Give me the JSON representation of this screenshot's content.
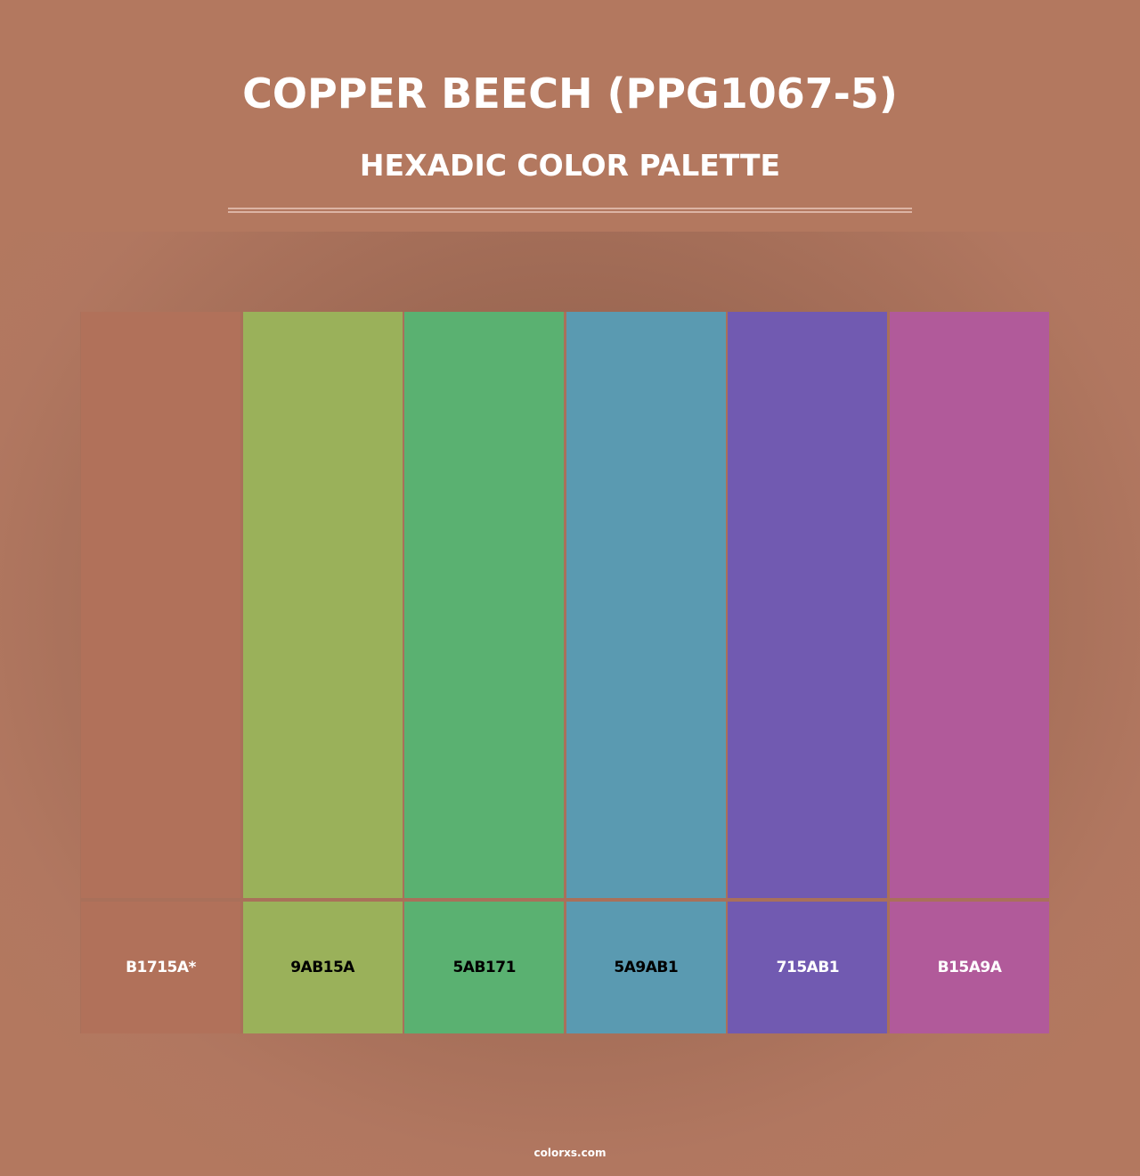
{
  "header": {
    "title": "COPPER BEECH (PPG1067-5)",
    "subtitle": "HEXADIC COLOR PALETTE"
  },
  "palette": [
    {
      "hex": "B1715A*",
      "color": "#b1715a",
      "text_color": "#ffffff"
    },
    {
      "hex": "9AB15A",
      "color": "#9ab15a",
      "text_color": "#000000"
    },
    {
      "hex": "5AB171",
      "color": "#5ab171",
      "text_color": "#000000"
    },
    {
      "hex": "5A9AB1",
      "color": "#5a9ab1",
      "text_color": "#000000"
    },
    {
      "hex": "715AB1",
      "color": "#715ab1",
      "text_color": "#ffffff"
    },
    {
      "hex": "B15A9A",
      "color": "#b15a9a",
      "text_color": "#ffffff"
    }
  ],
  "footer": {
    "site": "colorxs.com"
  }
}
